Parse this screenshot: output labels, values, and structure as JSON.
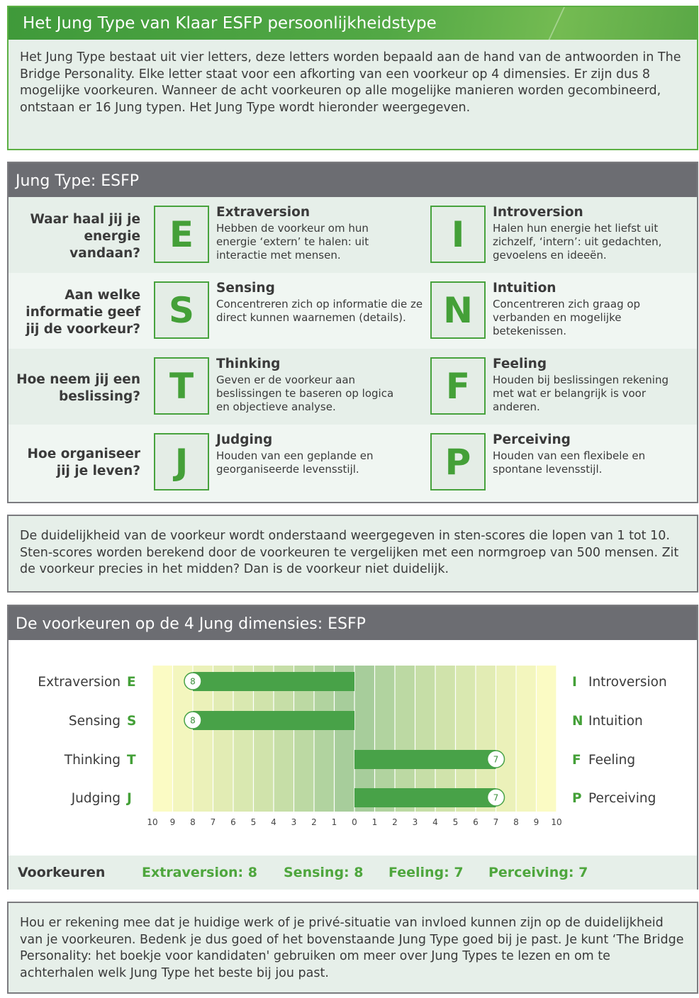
{
  "intro": {
    "title": "Het Jung Type van Klaar ESFP persoonlijkheidstype",
    "text": "Het Jung Type bestaat uit vier letters, deze letters worden bepaald aan de hand van de antwoorden in The Bridge Personality. Elke letter staat voor een afkorting van een voorkeur op 4 dimensies. Er zijn dus 8 mogelijke voorkeuren. Wanneer de acht voorkeuren op alle mogelijke manieren worden gecombineerd, ontstaan er 16 Jung typen. Het Jung Type wordt hieronder weergegeven."
  },
  "jung_type": {
    "title": "Jung Type: ESFP",
    "rows": [
      {
        "question": "Waar haal jij je energie vandaan?",
        "left": {
          "letter": "E",
          "name": "Extraversion",
          "desc": "Hebben de voorkeur om hun energie ‘extern’ te halen: uit interactie met mensen."
        },
        "right": {
          "letter": "I",
          "name": "Introversion",
          "desc": "Halen hun energie het liefst uit zichzelf, ‘intern’: uit gedachten, gevoelens en ideeën."
        }
      },
      {
        "question": "Aan welke informatie geef jij de voorkeur?",
        "left": {
          "letter": "S",
          "name": "Sensing",
          "desc": "Concentreren zich op informatie die ze direct kunnen waarnemen (details)."
        },
        "right": {
          "letter": "N",
          "name": "Intuition",
          "desc": "Concentreren zich graag op verbanden en mogelijke betekenissen."
        }
      },
      {
        "question": "Hoe neem jij een beslissing?",
        "left": {
          "letter": "T",
          "name": "Thinking",
          "desc": "Geven er de voorkeur aan beslissingen te baseren op logica en objectieve analyse."
        },
        "right": {
          "letter": "F",
          "name": "Feeling",
          "desc": "Houden bij beslissingen rekening met wat er belangrijk is voor anderen."
        }
      },
      {
        "question": "Hoe organiseer jij je leven?",
        "left": {
          "letter": "J",
          "name": "Judging",
          "desc": "Houden van een geplande en georganiseerde levensstijl."
        },
        "right": {
          "letter": "P",
          "name": "Perceiving",
          "desc": "Houden van een flexibele en spontane levensstijl."
        }
      }
    ]
  },
  "sten_text": "De duidelijkheid van de voorkeur wordt onderstaand weergegeven in sten-scores die lopen van 1 tot 10. Sten-scores worden berekend door de voorkeuren te vergelijken met een normgroep van 500 mensen. Zit de voorkeur precies in het midden? Dan is de voorkeur niet duidelijk.",
  "dimensions": {
    "title": "De voorkeuren op de 4 Jung dimensies: ESFP",
    "preferences_label": "Voorkeuren",
    "preferences": [
      "Extraversion: 8",
      "Sensing: 8",
      "Feeling: 7",
      "Perceiving: 7"
    ]
  },
  "chart_data": {
    "type": "bar",
    "orientation": "diverging-horizontal",
    "x_ticks": [
      "10",
      "9",
      "8",
      "7",
      "6",
      "5",
      "4",
      "3",
      "2",
      "1",
      "0",
      "1",
      "2",
      "3",
      "4",
      "5",
      "6",
      "7",
      "8",
      "9",
      "10"
    ],
    "rows": [
      {
        "left_label": "Extraversion",
        "left_letter": "E",
        "right_letter": "I",
        "right_label": "Introversion",
        "side": "left",
        "value": 8
      },
      {
        "left_label": "Sensing",
        "left_letter": "S",
        "right_letter": "N",
        "right_label": "Intuition",
        "side": "left",
        "value": 8
      },
      {
        "left_label": "Thinking",
        "left_letter": "T",
        "right_letter": "F",
        "right_label": "Feeling",
        "side": "right",
        "value": 7
      },
      {
        "left_label": "Judging",
        "left_letter": "J",
        "right_letter": "P",
        "right_label": "Perceiving",
        "side": "right",
        "value": 7
      }
    ],
    "xlim": [
      -10,
      10
    ],
    "bar_color": "#48a248",
    "label_color": "#44a038"
  },
  "note_text": "Hou er rekening mee dat je huidige werk of je privé-situatie van invloed kunnen zijn op de duidelijkheid van je voorkeuren. Bedenk je dus goed of het bovenstaande Jung Type goed bij je past. Je kunt ‘The Bridge Personality: het boekje voor kandidaten' gebruiken om meer over Jung Types te lezen en om te achterhalen welk Jung Type het beste bij jou past."
}
